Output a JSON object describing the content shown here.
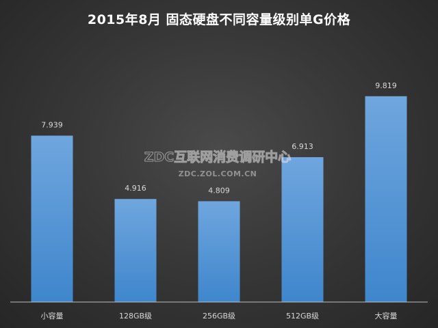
{
  "chart_data": {
    "type": "bar",
    "title": "2015年8月  固态硬盘不同容量级别单G价格",
    "categories": [
      "小容量",
      "128GB级",
      "256GB级",
      "512GB级",
      "大容量"
    ],
    "values": [
      7.939,
      4.916,
      4.809,
      6.913,
      9.819
    ],
    "value_labels": [
      "7.939",
      "4.916",
      "4.809",
      "6.913",
      "9.819"
    ],
    "xlabel": "",
    "ylabel": "",
    "ylim": [
      0,
      11.15
    ],
    "grid": false,
    "legend": "none",
    "bar_color_top": "#6fa6de",
    "bar_color_bottom": "#3f86cc"
  },
  "watermark": {
    "line1": "ZDC互联网消费调研中心",
    "line2": "ZDC.ZOL.COM.CN"
  },
  "colors": {
    "background": "#3a3a3a",
    "axis": "#bfbfbf",
    "text": "#ffffff",
    "label_text": "#d9d9d9"
  }
}
